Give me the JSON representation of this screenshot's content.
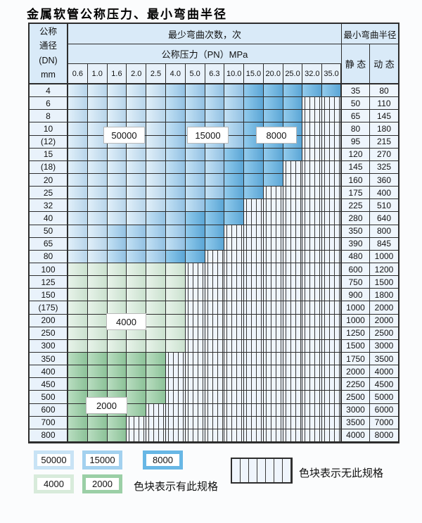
{
  "title": "金属软管公称压力、最小弯曲半径",
  "table": {
    "header": {
      "dn_lines": [
        "公称",
        "通径",
        "(DN)",
        "mm"
      ],
      "cycles_label": "最少弯曲次数，次",
      "pressure_label": "公称压力（PN）MPa",
      "radius_label": "最小弯曲半径",
      "static_label": "静 态",
      "dynamic_label": "动 态",
      "pressures": [
        "0.6",
        "1.0",
        "1.6",
        "2.0",
        "2.5",
        "4.0",
        "5.0",
        "6.3",
        "10.0",
        "15.0",
        "20.0",
        "25.0",
        "32.0",
        "35.0"
      ]
    },
    "cell_codes": {
      "L": "50000 次",
      "M": "15000 次",
      "D": "8000 次",
      "G": "4000 次",
      "E": "2000 次",
      "H": "无此规格"
    },
    "rows": [
      {
        "dn": "4",
        "cells": "LLLLLMMMMDDDDD",
        "static": "35",
        "dynamic": "80"
      },
      {
        "dn": "6",
        "cells": "LLLLLMMMMDDDHH",
        "static": "50",
        "dynamic": "110"
      },
      {
        "dn": "8",
        "cells": "LLLLLMMMMDDDHH",
        "static": "65",
        "dynamic": "145"
      },
      {
        "dn": "10",
        "cells": "LLLLLMMMMDDDHH",
        "static": "80",
        "dynamic": "180"
      },
      {
        "dn": "(12)",
        "cells": "LLLLLMMMMDDDHH",
        "static": "95",
        "dynamic": "215"
      },
      {
        "dn": "15",
        "cells": "LLLLLMMMDDDDHH",
        "static": "120",
        "dynamic": "270"
      },
      {
        "dn": "(18)",
        "cells": "LLLLLMMMDDDHHH",
        "static": "145",
        "dynamic": "325"
      },
      {
        "dn": "20",
        "cells": "LLLLLMMMDDDHHH",
        "static": "160",
        "dynamic": "360"
      },
      {
        "dn": "25",
        "cells": "LLLLLMMMDDHHHH",
        "static": "175",
        "dynamic": "400"
      },
      {
        "dn": "32",
        "cells": "LLLLLMMDDHHHHH",
        "static": "225",
        "dynamic": "510"
      },
      {
        "dn": "40",
        "cells": "LLLLMMDDDHHHHH",
        "static": "280",
        "dynamic": "640"
      },
      {
        "dn": "50",
        "cells": "LLMMMMDDHHHHHH",
        "static": "350",
        "dynamic": "800"
      },
      {
        "dn": "65",
        "cells": "LLMMMMDDHHHHHH",
        "static": "390",
        "dynamic": "845"
      },
      {
        "dn": "80",
        "cells": "LLMMMDDHHHHHHH",
        "static": "480",
        "dynamic": "1000"
      },
      {
        "dn": "100",
        "cells": "GGGGGGHHHHHHHH",
        "static": "600",
        "dynamic": "1200"
      },
      {
        "dn": "125",
        "cells": "GGGGGGHHHHHHHH",
        "static": "750",
        "dynamic": "1500"
      },
      {
        "dn": "150",
        "cells": "GGGGGGHHHHHHHH",
        "static": "900",
        "dynamic": "1800"
      },
      {
        "dn": "(175)",
        "cells": "GGGGGGHHHHHHHH",
        "static": "1000",
        "dynamic": "2000"
      },
      {
        "dn": "200",
        "cells": "GGGGGGHHHHHHHH",
        "static": "1000",
        "dynamic": "2000"
      },
      {
        "dn": "250",
        "cells": "GGGGGGHHHHHHHH",
        "static": "1250",
        "dynamic": "2500"
      },
      {
        "dn": "300",
        "cells": "GGGGGGHHHHHHHH",
        "static": "1500",
        "dynamic": "3000"
      },
      {
        "dn": "350",
        "cells": "EEEEEHHHHHHHHH",
        "static": "1750",
        "dynamic": "3500"
      },
      {
        "dn": "400",
        "cells": "EEEEEHHHHHHHHH",
        "static": "2000",
        "dynamic": "4000"
      },
      {
        "dn": "450",
        "cells": "EEEEEHHHHHHHHH",
        "static": "2250",
        "dynamic": "4500"
      },
      {
        "dn": "500",
        "cells": "EEEEEHHHHHHHHH",
        "static": "2500",
        "dynamic": "5000"
      },
      {
        "dn": "600",
        "cells": "EEEEHHHHHHHHHH",
        "static": "3000",
        "dynamic": "6000"
      },
      {
        "dn": "700",
        "cells": "EEEHHHHHHHHHHH",
        "static": "3500",
        "dynamic": "7000"
      },
      {
        "dn": "800",
        "cells": "EEEHHHHHHHHHHH",
        "static": "4000",
        "dynamic": "8000"
      }
    ],
    "overlays": [
      {
        "text": "50000"
      },
      {
        "text": "15000"
      },
      {
        "text": "8000"
      },
      {
        "text": "4000"
      },
      {
        "text": "2000"
      }
    ]
  },
  "legend": {
    "swatches": [
      {
        "label": "50000"
      },
      {
        "label": "15000"
      },
      {
        "label": "8000"
      },
      {
        "label": "4000"
      },
      {
        "label": "2000"
      }
    ],
    "has_spec_text": "色块表示有此规格",
    "no_spec_text": "色块表示无此规格"
  },
  "colors": {
    "c50000": "#c8e3f5",
    "c15000": "#a3d1ef",
    "c8000": "#68b7e5",
    "c4000": "#d8ebdb",
    "c2000": "#9bcfa6",
    "hatch-bg": "#eff5fc",
    "border": "#2d2d2d",
    "header-bg": "#d9eaf8",
    "subhead-bg": "#e7f1fa",
    "label-bg": "#e9f2fb",
    "value-bg": "#eef5fc"
  }
}
